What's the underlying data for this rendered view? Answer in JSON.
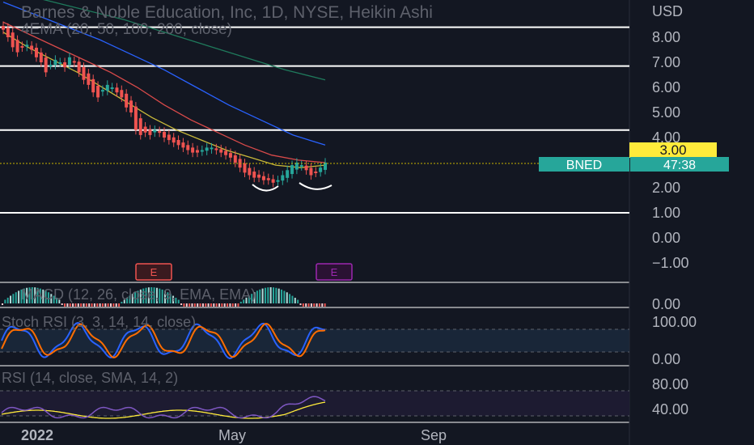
{
  "header": {
    "title": "Barnes & Noble Education, Inc, 1D, NYSE, Heikin Ashi",
    "ema_label": "4EMA (20, 50, 100, 200, close)"
  },
  "price_axis": {
    "currency": "USD",
    "ticks": [
      "8.00",
      "7.00",
      "6.00",
      "5.00",
      "4.00",
      "2.00",
      "1.00",
      "0.00",
      "−1.00"
    ],
    "tick_values": [
      8,
      7,
      6,
      5,
      4,
      2,
      1,
      0,
      -1
    ]
  },
  "markers": {
    "highlight_price": "3.00",
    "ticker": "BNED",
    "countdown": "47:38",
    "earnings": [
      "E",
      "E"
    ]
  },
  "horizontal_levels": [
    8.4,
    6.85,
    4.3,
    1.0
  ],
  "macd": {
    "label": "MACD (12, 26, close, 9, EMA, EMA)",
    "tick": "0.00"
  },
  "stoch": {
    "label": "Stoch RSI (3, 3, 14, 14, close)",
    "ticks": [
      "100.00",
      "0.00"
    ]
  },
  "rsi": {
    "label": "RSI (14, close, SMA, 14, 2)",
    "ticks": [
      "80.00",
      "40.00"
    ]
  },
  "time_axis": {
    "labels": [
      "2022",
      "May",
      "Sep"
    ]
  },
  "colors": {
    "background": "#131722",
    "up": "#26a69a",
    "down": "#ef5350",
    "ema20": "#c9b93a",
    "ema50": "#d94a4a",
    "ema100": "#2962ff",
    "ema200": "#1f7a5c",
    "price_line": "#c8b400",
    "ticker_bg": "#26a69a",
    "highlight_bg": "#ffeb3b",
    "earnings_red": "#ef5350",
    "earnings_purple": "#9c27b0",
    "stoch_k": "#2962ff",
    "stoch_d": "#ff6d00",
    "rsi_line": "#7e57c2",
    "rsi_ma": "#ffeb3b"
  },
  "chart_data": {
    "type": "candlestick",
    "title": "Barnes & Noble Education, Inc, 1D, NYSE, Heikin Ashi",
    "ylabel": "USD",
    "ylim": [
      -1.5,
      9.5
    ],
    "x_labels": [
      "2022",
      "May",
      "Sep"
    ],
    "candles_close": [
      8.3,
      8.0,
      7.6,
      7.4,
      7.6,
      7.7,
      7.5,
      7.2,
      7.0,
      6.6,
      6.9,
      7.1,
      7.0,
      6.8,
      7.2,
      7.0,
      6.6,
      6.3,
      6.1,
      5.8,
      5.6,
      5.9,
      6.1,
      6.0,
      5.8,
      5.6,
      5.2,
      5.0,
      4.3,
      4.1,
      4.2,
      4.1,
      4.3,
      4.2,
      4.0,
      3.9,
      3.8,
      3.7,
      3.6,
      3.5,
      3.4,
      3.4,
      3.5,
      3.6,
      3.6,
      3.5,
      3.4,
      3.3,
      3.2,
      3.0,
      2.8,
      2.6,
      2.5,
      2.4,
      2.4,
      2.3,
      2.3,
      2.2,
      2.3,
      2.5,
      2.7,
      2.9,
      3.0,
      2.9,
      2.7,
      2.5,
      2.6,
      2.8,
      3.0
    ],
    "ema20": [
      8.2,
      7.6,
      7.1,
      6.6,
      6.0,
      5.4,
      4.8,
      4.3,
      3.9,
      3.5,
      3.2,
      2.9,
      2.8,
      2.9
    ],
    "ema50": [
      8.6,
      8.1,
      7.6,
      7.1,
      6.6,
      6.0,
      5.3,
      4.7,
      4.2,
      3.7,
      3.3,
      3.1,
      3.0
    ],
    "ema100": [
      9.4,
      8.9,
      8.4,
      7.9,
      7.3,
      6.7,
      6.0,
      5.3,
      4.7,
      4.1,
      3.7
    ],
    "ema200": [
      9.8,
      9.5,
      9.1,
      8.7,
      8.2,
      7.7,
      7.2,
      6.7,
      6.3
    ],
    "horizontal_levels": [
      8.4,
      6.85,
      4.3,
      1.0
    ],
    "last_price": 3.0
  }
}
